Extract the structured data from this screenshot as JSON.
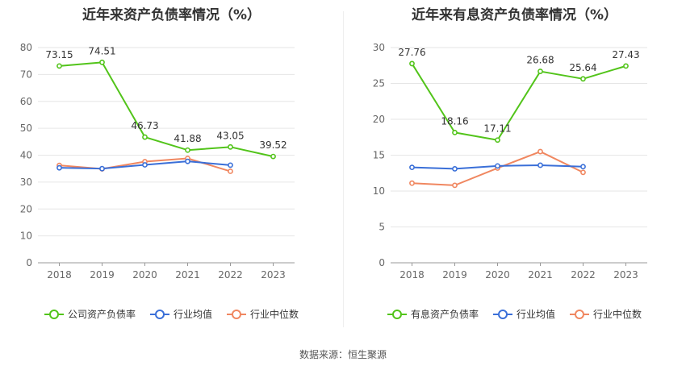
{
  "source_label": "数据来源：恒生聚源",
  "chart_data": [
    {
      "type": "line",
      "title": "近年来资产负债率情况（%）",
      "categories": [
        "2018",
        "2019",
        "2020",
        "2021",
        "2022",
        "2023"
      ],
      "ylim": [
        0,
        80
      ],
      "yticks": [
        0,
        10,
        20,
        30,
        40,
        50,
        60,
        70,
        80
      ],
      "grid": true,
      "legend_position": "bottom",
      "series": [
        {
          "name": "公司资产负债率",
          "color": "#52c41a",
          "labels": true,
          "values": [
            73.15,
            74.51,
            46.73,
            41.88,
            43.05,
            39.52
          ]
        },
        {
          "name": "行业均值",
          "color": "#3a6fd8",
          "labels": false,
          "values": [
            35.3,
            35.0,
            36.4,
            37.7,
            36.3,
            null
          ]
        },
        {
          "name": "行业中位数",
          "color": "#f08760",
          "labels": false,
          "values": [
            36.2,
            34.9,
            37.6,
            38.8,
            34.0,
            null
          ]
        }
      ]
    },
    {
      "type": "line",
      "title": "近年来有息资产负债率情况（%）",
      "categories": [
        "2018",
        "2019",
        "2020",
        "2021",
        "2022",
        "2023"
      ],
      "ylim": [
        0,
        30
      ],
      "yticks": [
        0,
        5,
        10,
        15,
        20,
        25,
        30
      ],
      "grid": true,
      "legend_position": "bottom",
      "series": [
        {
          "name": "有息资产负债率",
          "color": "#52c41a",
          "labels": true,
          "values": [
            27.76,
            18.16,
            17.11,
            26.68,
            25.64,
            27.43
          ]
        },
        {
          "name": "行业均值",
          "color": "#3a6fd8",
          "labels": false,
          "values": [
            13.3,
            13.1,
            13.5,
            13.6,
            13.4,
            null
          ]
        },
        {
          "name": "行业中位数",
          "color": "#f08760",
          "labels": false,
          "values": [
            11.1,
            10.8,
            13.2,
            15.5,
            12.6,
            null
          ]
        }
      ]
    }
  ]
}
